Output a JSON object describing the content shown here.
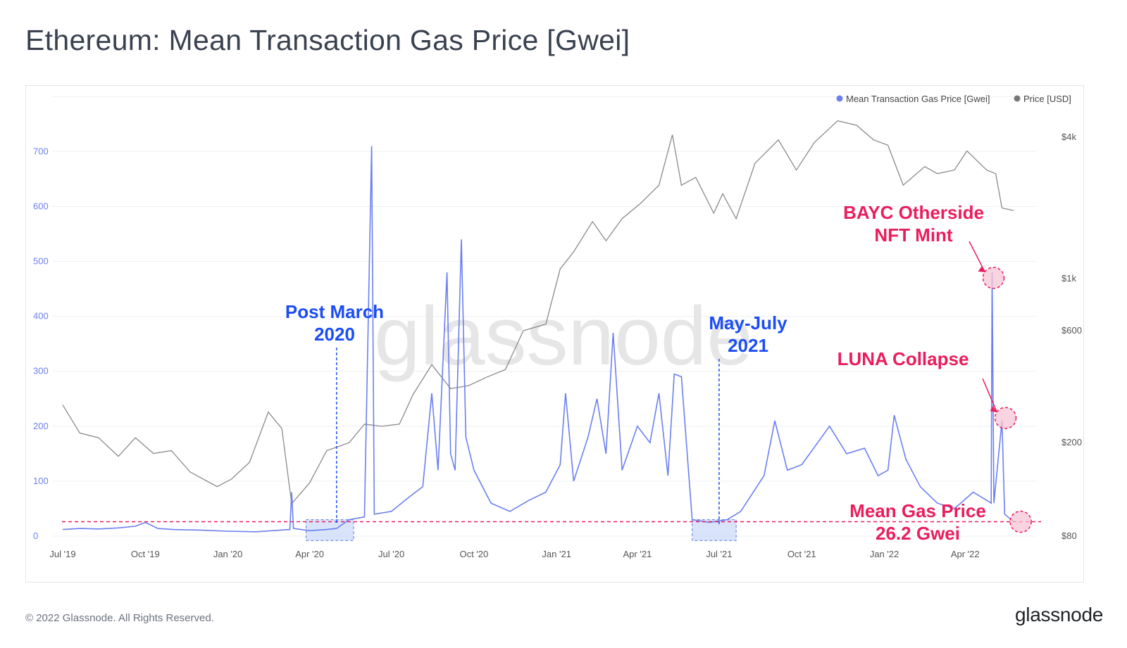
{
  "page": {
    "title": "Ethereum: Mean Transaction Gas Price [Gwei]",
    "copyright": "© 2022 Glassnode. All Rights Reserved.",
    "logo": "glassnode",
    "watermark": "glassnode"
  },
  "chart_data": {
    "type": "line",
    "title": "Ethereum: Mean Transaction Gas Price [Gwei]",
    "legend_position": "top-right",
    "legend": [
      "Mean Transaction Gas Price [Gwei]",
      "Price [USD]"
    ],
    "colors": {
      "gas": "#6b7ff0",
      "price": "#8a8a8a",
      "annotation_red": "#ea1d5d",
      "annotation_blue": "#1b4df5"
    },
    "x_ticks": [
      "Jul '19",
      "Oct '19",
      "Jan '20",
      "Apr '20",
      "Jul '20",
      "Oct '20",
      "Jan '21",
      "Apr '21",
      "Jul '21",
      "Oct '21",
      "Jan '22",
      "Apr '22"
    ],
    "y_left": {
      "ticks": [
        "0",
        "100",
        "200",
        "300",
        "400",
        "500",
        "600",
        "700"
      ],
      "range": [
        0,
        800
      ]
    },
    "y_right": {
      "ticks": [
        "$80",
        "$200",
        "$600",
        "$1k",
        "$4k"
      ],
      "scale": "log",
      "range": [
        80,
        6000
      ]
    },
    "series": [
      {
        "name": "Mean Transaction Gas Price [Gwei]",
        "axis": "left",
        "points": [
          [
            "2019-07-01",
            12
          ],
          [
            "2019-07-20",
            14
          ],
          [
            "2019-08-10",
            13
          ],
          [
            "2019-09-01",
            15
          ],
          [
            "2019-09-20",
            18
          ],
          [
            "2019-10-01",
            25
          ],
          [
            "2019-10-15",
            14
          ],
          [
            "2019-11-01",
            12
          ],
          [
            "2019-12-01",
            11
          ],
          [
            "2020-01-01",
            9
          ],
          [
            "2020-02-01",
            8
          ],
          [
            "2020-02-20",
            10
          ],
          [
            "2020-03-10",
            12
          ],
          [
            "2020-03-12",
            80
          ],
          [
            "2020-03-14",
            14
          ],
          [
            "2020-04-01",
            10
          ],
          [
            "2020-04-20",
            12
          ],
          [
            "2020-05-01",
            14
          ],
          [
            "2020-05-15",
            30
          ],
          [
            "2020-06-01",
            35
          ],
          [
            "2020-06-09",
            710
          ],
          [
            "2020-06-12",
            40
          ],
          [
            "2020-07-01",
            45
          ],
          [
            "2020-07-20",
            70
          ],
          [
            "2020-08-05",
            90
          ],
          [
            "2020-08-15",
            260
          ],
          [
            "2020-08-22",
            120
          ],
          [
            "2020-09-01",
            480
          ],
          [
            "2020-09-05",
            150
          ],
          [
            "2020-09-10",
            120
          ],
          [
            "2020-09-17",
            540
          ],
          [
            "2020-09-22",
            180
          ],
          [
            "2020-10-01",
            120
          ],
          [
            "2020-10-20",
            60
          ],
          [
            "2020-11-10",
            45
          ],
          [
            "2020-12-01",
            65
          ],
          [
            "2020-12-20",
            80
          ],
          [
            "2021-01-05",
            130
          ],
          [
            "2021-01-11",
            260
          ],
          [
            "2021-01-20",
            100
          ],
          [
            "2021-02-05",
            180
          ],
          [
            "2021-02-15",
            250
          ],
          [
            "2021-02-25",
            150
          ],
          [
            "2021-03-05",
            370
          ],
          [
            "2021-03-15",
            120
          ],
          [
            "2021-04-01",
            200
          ],
          [
            "2021-04-15",
            170
          ],
          [
            "2021-04-25",
            260
          ],
          [
            "2021-05-05",
            110
          ],
          [
            "2021-05-12",
            295
          ],
          [
            "2021-05-20",
            290
          ],
          [
            "2021-06-01",
            30
          ],
          [
            "2021-06-20",
            25
          ],
          [
            "2021-07-10",
            30
          ],
          [
            "2021-07-25",
            45
          ],
          [
            "2021-08-20",
            110
          ],
          [
            "2021-09-01",
            210
          ],
          [
            "2021-09-15",
            120
          ],
          [
            "2021-10-01",
            130
          ],
          [
            "2021-11-01",
            200
          ],
          [
            "2021-11-20",
            150
          ],
          [
            "2021-12-10",
            160
          ],
          [
            "2021-12-25",
            110
          ],
          [
            "2022-01-05",
            120
          ],
          [
            "2022-01-12",
            220
          ],
          [
            "2022-01-25",
            140
          ],
          [
            "2022-02-10",
            90
          ],
          [
            "2022-03-01",
            60
          ],
          [
            "2022-03-20",
            50
          ],
          [
            "2022-04-10",
            80
          ],
          [
            "2022-04-30",
            60
          ],
          [
            "2022-05-01",
            480
          ],
          [
            "2022-05-03",
            60
          ],
          [
            "2022-05-12",
            210
          ],
          [
            "2022-05-15",
            40
          ],
          [
            "2022-05-25",
            26
          ]
        ]
      },
      {
        "name": "Price [USD]",
        "axis": "right",
        "points": [
          [
            "2019-07-01",
            290
          ],
          [
            "2019-07-20",
            220
          ],
          [
            "2019-08-10",
            210
          ],
          [
            "2019-09-01",
            175
          ],
          [
            "2019-09-20",
            210
          ],
          [
            "2019-10-10",
            180
          ],
          [
            "2019-10-30",
            185
          ],
          [
            "2019-11-20",
            150
          ],
          [
            "2019-12-20",
            130
          ],
          [
            "2020-01-05",
            140
          ],
          [
            "2020-01-25",
            165
          ],
          [
            "2020-02-15",
            270
          ],
          [
            "2020-03-01",
            230
          ],
          [
            "2020-03-12",
            110
          ],
          [
            "2020-04-01",
            135
          ],
          [
            "2020-04-20",
            185
          ],
          [
            "2020-05-15",
            200
          ],
          [
            "2020-06-01",
            240
          ],
          [
            "2020-06-20",
            235
          ],
          [
            "2020-07-10",
            240
          ],
          [
            "2020-07-25",
            320
          ],
          [
            "2020-08-15",
            430
          ],
          [
            "2020-09-05",
            340
          ],
          [
            "2020-09-25",
            350
          ],
          [
            "2020-10-15",
            380
          ],
          [
            "2020-11-05",
            410
          ],
          [
            "2020-11-25",
            600
          ],
          [
            "2020-12-20",
            640
          ],
          [
            "2021-01-05",
            1100
          ],
          [
            "2021-01-20",
            1300
          ],
          [
            "2021-02-10",
            1750
          ],
          [
            "2021-02-25",
            1450
          ],
          [
            "2021-03-15",
            1800
          ],
          [
            "2021-04-05",
            2100
          ],
          [
            "2021-04-25",
            2500
          ],
          [
            "2021-05-10",
            4100
          ],
          [
            "2021-05-20",
            2500
          ],
          [
            "2021-06-05",
            2700
          ],
          [
            "2021-06-25",
            1900
          ],
          [
            "2021-07-05",
            2300
          ],
          [
            "2021-07-20",
            1800
          ],
          [
            "2021-08-10",
            3100
          ],
          [
            "2021-09-05",
            3900
          ],
          [
            "2021-09-25",
            2900
          ],
          [
            "2021-10-15",
            3800
          ],
          [
            "2021-11-10",
            4700
          ],
          [
            "2021-12-01",
            4500
          ],
          [
            "2021-12-20",
            3900
          ],
          [
            "2022-01-05",
            3700
          ],
          [
            "2022-01-22",
            2500
          ],
          [
            "2022-02-15",
            3000
          ],
          [
            "2022-03-01",
            2800
          ],
          [
            "2022-03-20",
            2900
          ],
          [
            "2022-04-03",
            3500
          ],
          [
            "2022-04-25",
            2900
          ],
          [
            "2022-05-05",
            2800
          ],
          [
            "2022-05-12",
            2000
          ],
          [
            "2022-05-25",
            1950
          ]
        ]
      }
    ],
    "annotations": [
      {
        "id": "post-march",
        "lines": [
          "Post March",
          "2020"
        ],
        "color": "blue",
        "date": "2020-05-01",
        "range": [
          "2020-03-28",
          "2020-05-20"
        ]
      },
      {
        "id": "may-july",
        "lines": [
          "May-July",
          "2021"
        ],
        "color": "blue",
        "date": "2021-07-01",
        "range": [
          "2021-06-01",
          "2021-07-20"
        ]
      },
      {
        "id": "bayc",
        "lines": [
          "BAYC Otherside",
          "NFT Mint"
        ],
        "color": "red",
        "date": "2022-05-01",
        "value": 470
      },
      {
        "id": "luna",
        "lines": [
          "LUNA Collapse"
        ],
        "color": "red",
        "date": "2022-05-12",
        "value": 215
      },
      {
        "id": "mean",
        "lines": [
          "Mean Gas Price",
          "26.2 Gwei"
        ],
        "color": "red",
        "date": "2022-05-25",
        "value": 26.2
      }
    ],
    "reference_line": {
      "value": 26.2,
      "style": "dashed",
      "color": "red"
    }
  }
}
